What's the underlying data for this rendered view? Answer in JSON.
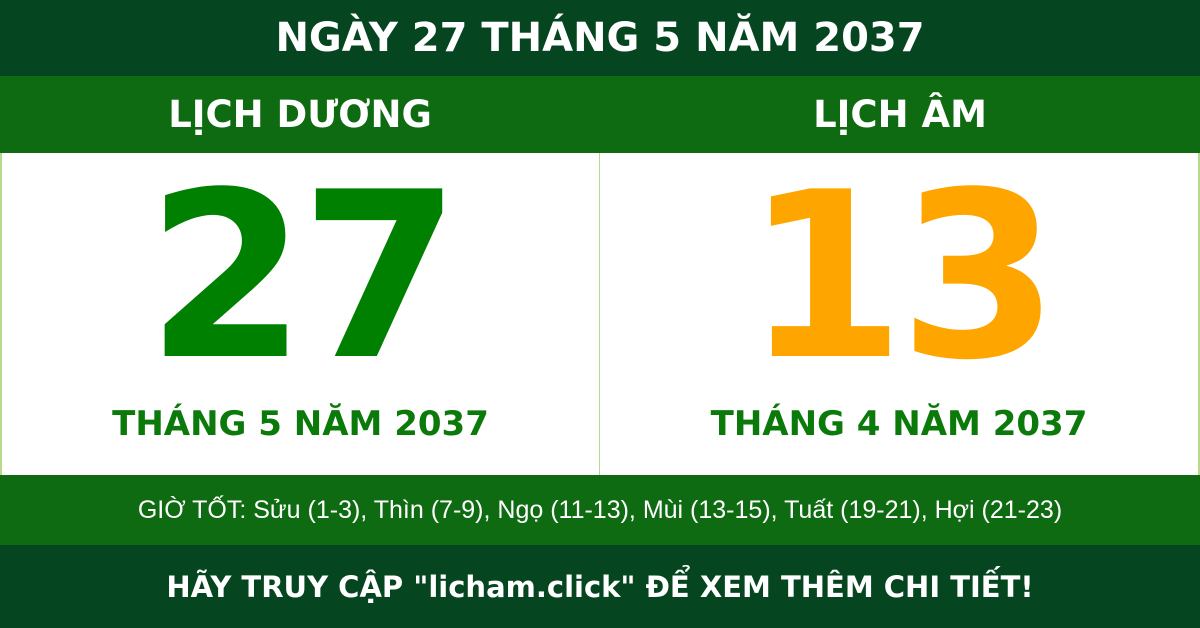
{
  "header": {
    "title": "NGÀY 27 THÁNG 5 NĂM 2037"
  },
  "solar": {
    "label": "LỊCH DƯƠNG",
    "day": "27",
    "month_year": "THÁNG 5 NĂM 2037",
    "color": "#008000"
  },
  "lunar": {
    "label": "LỊCH ÂM",
    "day": "13",
    "month_year": "THÁNG 4 NĂM 2037",
    "color": "#ffa500"
  },
  "good_hours": "GIỜ TỐT: Sửu (1-3), Thìn (7-9), Ngọ (11-13), Mùi (13-15), Tuất (19-21), Hợi (21-23)",
  "footer": {
    "cta": "HÃY TRUY CẬP \"licham.click\" ĐỂ XEM THÊM CHI TIẾT!"
  }
}
